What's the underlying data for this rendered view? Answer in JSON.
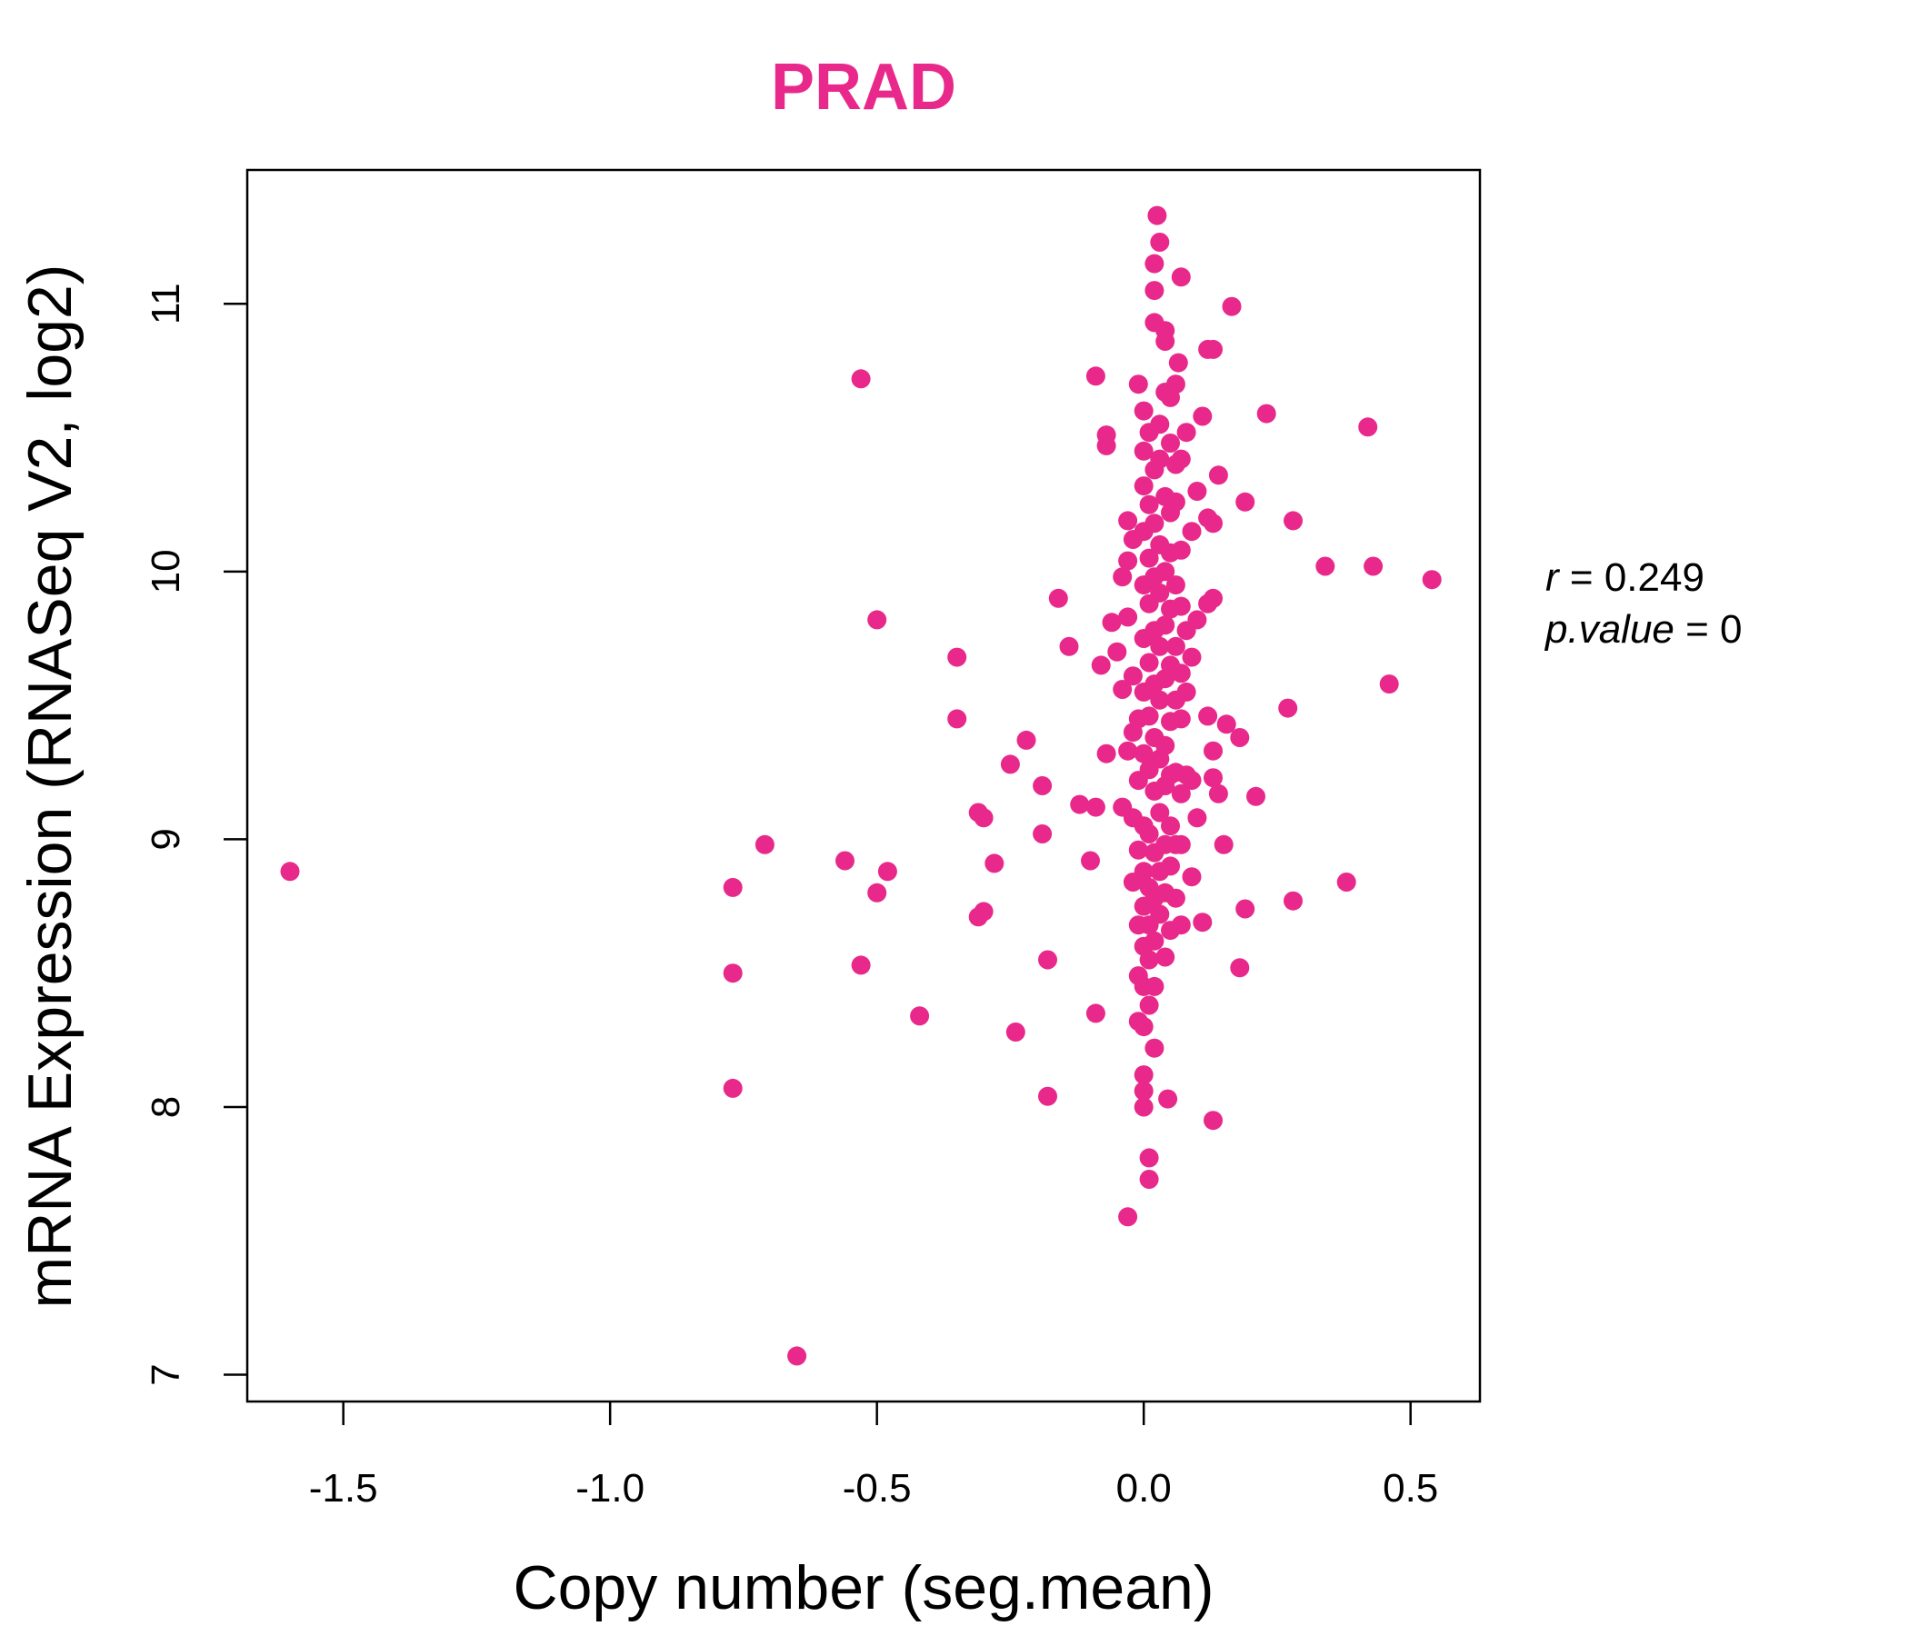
{
  "chart_data": {
    "type": "scatter",
    "title": "PRAD",
    "xlabel": "Copy number (seg.mean)",
    "ylabel": "mRNA Expression (RNASeq V2, log2)",
    "xlim": [
      -1.68,
      0.63
    ],
    "ylim": [
      6.9,
      11.5
    ],
    "xticks": [
      -1.5,
      -1.0,
      -0.5,
      0.0,
      0.5
    ],
    "xtick_labels": [
      "-1.5",
      "-1.0",
      "-0.5",
      "0.0",
      "0.5"
    ],
    "yticks": [
      7,
      8,
      9,
      10,
      11
    ],
    "ytick_labels": [
      "7",
      "8",
      "9",
      "10",
      "11"
    ],
    "grid": false,
    "legend": "none",
    "color": "#E8298B",
    "annotations": {
      "r_label": "r",
      "r_value": "0.249",
      "p_label": "p.value",
      "p_value": "0"
    },
    "points": [
      [
        -1.6,
        8.88
      ],
      [
        -0.65,
        7.07
      ],
      [
        -0.77,
        8.82
      ],
      [
        -0.77,
        8.5
      ],
      [
        -0.77,
        8.07
      ],
      [
        -0.71,
        8.98
      ],
      [
        -0.56,
        8.92
      ],
      [
        -0.53,
        10.72
      ],
      [
        -0.53,
        8.53
      ],
      [
        -0.5,
        9.82
      ],
      [
        -0.5,
        8.8
      ],
      [
        -0.48,
        8.88
      ],
      [
        -0.42,
        8.34
      ],
      [
        -0.35,
        9.68
      ],
      [
        -0.35,
        9.45
      ],
      [
        -0.31,
        9.1
      ],
      [
        -0.3,
        9.08
      ],
      [
        -0.3,
        8.73
      ],
      [
        -0.31,
        8.71
      ],
      [
        -0.28,
        8.91
      ],
      [
        -0.25,
        9.28
      ],
      [
        -0.24,
        8.28
      ],
      [
        -0.22,
        9.37
      ],
      [
        -0.19,
        9.2
      ],
      [
        -0.19,
        9.02
      ],
      [
        -0.18,
        8.55
      ],
      [
        -0.18,
        8.04
      ],
      [
        -0.16,
        9.9
      ],
      [
        -0.14,
        9.72
      ],
      [
        -0.12,
        9.13
      ],
      [
        -0.1,
        8.92
      ],
      [
        -0.09,
        9.12
      ],
      [
        -0.09,
        8.35
      ],
      [
        -0.09,
        10.73
      ],
      [
        -0.08,
        9.65
      ],
      [
        -0.07,
        10.51
      ],
      [
        -0.07,
        10.47
      ],
      [
        -0.07,
        9.32
      ],
      [
        -0.06,
        9.81
      ],
      [
        -0.05,
        9.7
      ],
      [
        -0.04,
        9.98
      ],
      [
        -0.04,
        9.56
      ],
      [
        -0.04,
        9.12
      ],
      [
        -0.03,
        10.19
      ],
      [
        -0.03,
        10.04
      ],
      [
        -0.03,
        9.83
      ],
      [
        -0.03,
        9.33
      ],
      [
        -0.03,
        7.59
      ],
      [
        -0.02,
        9.61
      ],
      [
        -0.02,
        9.4
      ],
      [
        -0.02,
        9.08
      ],
      [
        -0.02,
        8.84
      ],
      [
        -0.02,
        10.12
      ],
      [
        -0.01,
        10.7
      ],
      [
        -0.01,
        9.45
      ],
      [
        -0.01,
        9.22
      ],
      [
        -0.01,
        8.96
      ],
      [
        -0.01,
        8.68
      ],
      [
        -0.01,
        8.49
      ],
      [
        -0.01,
        8.32
      ],
      [
        0.0,
        10.6
      ],
      [
        0.0,
        10.45
      ],
      [
        0.0,
        10.32
      ],
      [
        0.0,
        10.15
      ],
      [
        0.0,
        9.95
      ],
      [
        0.0,
        9.75
      ],
      [
        0.0,
        9.55
      ],
      [
        0.0,
        9.32
      ],
      [
        0.0,
        9.05
      ],
      [
        0.0,
        8.88
      ],
      [
        0.0,
        8.75
      ],
      [
        0.0,
        8.6
      ],
      [
        0.0,
        8.45
      ],
      [
        0.0,
        8.3
      ],
      [
        0.0,
        8.12
      ],
      [
        0.0,
        8.06
      ],
      [
        0.0,
        8.0
      ],
      [
        0.01,
        10.52
      ],
      [
        0.01,
        10.25
      ],
      [
        0.01,
        10.05
      ],
      [
        0.01,
        9.88
      ],
      [
        0.01,
        9.66
      ],
      [
        0.01,
        9.46
      ],
      [
        0.01,
        9.26
      ],
      [
        0.01,
        9.02
      ],
      [
        0.01,
        8.82
      ],
      [
        0.01,
        8.68
      ],
      [
        0.01,
        8.55
      ],
      [
        0.01,
        8.38
      ],
      [
        0.01,
        7.81
      ],
      [
        0.01,
        7.73
      ],
      [
        0.02,
        11.15
      ],
      [
        0.02,
        11.05
      ],
      [
        0.02,
        10.93
      ],
      [
        0.02,
        10.38
      ],
      [
        0.02,
        10.18
      ],
      [
        0.02,
        9.98
      ],
      [
        0.02,
        9.78
      ],
      [
        0.02,
        9.58
      ],
      [
        0.02,
        9.38
      ],
      [
        0.02,
        9.18
      ],
      [
        0.02,
        8.95
      ],
      [
        0.02,
        8.78
      ],
      [
        0.02,
        8.62
      ],
      [
        0.02,
        8.45
      ],
      [
        0.02,
        8.22
      ],
      [
        0.025,
        11.33
      ],
      [
        0.03,
        11.23
      ],
      [
        0.03,
        10.55
      ],
      [
        0.03,
        10.42
      ],
      [
        0.03,
        10.1
      ],
      [
        0.03,
        9.92
      ],
      [
        0.03,
        9.72
      ],
      [
        0.03,
        9.52
      ],
      [
        0.03,
        9.3
      ],
      [
        0.03,
        9.1
      ],
      [
        0.03,
        8.88
      ],
      [
        0.03,
        8.72
      ],
      [
        0.04,
        10.9
      ],
      [
        0.04,
        10.86
      ],
      [
        0.04,
        10.67
      ],
      [
        0.04,
        10.28
      ],
      [
        0.04,
        10.0
      ],
      [
        0.04,
        9.8
      ],
      [
        0.04,
        9.6
      ],
      [
        0.04,
        9.35
      ],
      [
        0.04,
        9.2
      ],
      [
        0.04,
        8.98
      ],
      [
        0.04,
        8.8
      ],
      [
        0.04,
        8.56
      ],
      [
        0.045,
        8.03
      ],
      [
        0.05,
        10.65
      ],
      [
        0.05,
        10.48
      ],
      [
        0.05,
        10.22
      ],
      [
        0.05,
        10.07
      ],
      [
        0.05,
        9.86
      ],
      [
        0.05,
        9.65
      ],
      [
        0.05,
        9.44
      ],
      [
        0.05,
        9.24
      ],
      [
        0.05,
        9.05
      ],
      [
        0.05,
        8.9
      ],
      [
        0.05,
        8.66
      ],
      [
        0.06,
        10.7
      ],
      [
        0.06,
        10.4
      ],
      [
        0.06,
        10.26
      ],
      [
        0.06,
        9.95
      ],
      [
        0.06,
        9.72
      ],
      [
        0.06,
        9.52
      ],
      [
        0.06,
        9.25
      ],
      [
        0.06,
        8.98
      ],
      [
        0.06,
        8.78
      ],
      [
        0.065,
        10.78
      ],
      [
        0.07,
        11.1
      ],
      [
        0.07,
        10.42
      ],
      [
        0.07,
        10.08
      ],
      [
        0.07,
        9.87
      ],
      [
        0.07,
        9.62
      ],
      [
        0.07,
        9.45
      ],
      [
        0.07,
        9.17
      ],
      [
        0.07,
        8.98
      ],
      [
        0.07,
        8.68
      ],
      [
        0.08,
        10.52
      ],
      [
        0.08,
        9.78
      ],
      [
        0.08,
        9.55
      ],
      [
        0.08,
        9.24
      ],
      [
        0.09,
        10.15
      ],
      [
        0.09,
        9.68
      ],
      [
        0.09,
        9.22
      ],
      [
        0.09,
        8.86
      ],
      [
        0.1,
        10.3
      ],
      [
        0.1,
        9.82
      ],
      [
        0.1,
        9.08
      ],
      [
        0.11,
        10.58
      ],
      [
        0.11,
        8.69
      ],
      [
        0.12,
        10.83
      ],
      [
        0.12,
        10.2
      ],
      [
        0.12,
        9.88
      ],
      [
        0.12,
        9.46
      ],
      [
        0.13,
        10.83
      ],
      [
        0.13,
        10.18
      ],
      [
        0.13,
        9.9
      ],
      [
        0.13,
        9.33
      ],
      [
        0.13,
        9.23
      ],
      [
        0.13,
        7.95
      ],
      [
        0.14,
        10.36
      ],
      [
        0.14,
        9.17
      ],
      [
        0.15,
        8.98
      ],
      [
        0.155,
        9.43
      ],
      [
        0.165,
        10.99
      ],
      [
        0.18,
        9.38
      ],
      [
        0.18,
        8.52
      ],
      [
        0.19,
        10.26
      ],
      [
        0.19,
        8.74
      ],
      [
        0.21,
        9.16
      ],
      [
        0.23,
        10.59
      ],
      [
        0.27,
        9.49
      ],
      [
        0.28,
        10.19
      ],
      [
        0.28,
        8.77
      ],
      [
        0.34,
        10.02
      ],
      [
        0.38,
        8.84
      ],
      [
        0.42,
        10.54
      ],
      [
        0.43,
        10.02
      ],
      [
        0.46,
        9.58
      ],
      [
        0.54,
        9.97
      ]
    ]
  }
}
